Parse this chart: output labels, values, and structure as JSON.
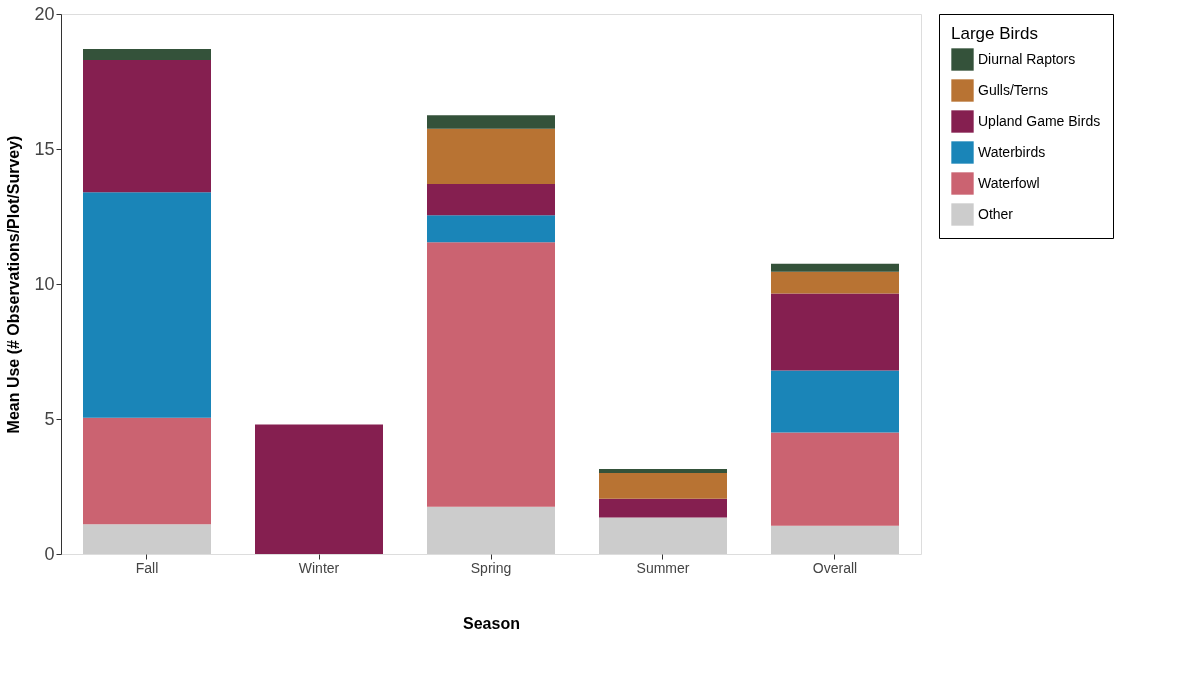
{
  "chart_data": {
    "type": "bar",
    "stacked": true,
    "xlabel": "Season",
    "ylabel": "Mean Use (# Observations/Plot/Survey)",
    "legend_title": "Large Birds",
    "legend": "right",
    "categories": [
      "Fall",
      "Winter",
      "Spring",
      "Summer",
      "Overall"
    ],
    "ylim": [
      0,
      20
    ],
    "yticks": [
      0,
      5,
      10,
      15,
      20
    ],
    "grid": false,
    "series": [
      {
        "name": "Other",
        "color": "#cccccc",
        "values": [
          1.1,
          null,
          1.75,
          1.35,
          1.05
        ]
      },
      {
        "name": "Waterfowl",
        "color": "#cb6371",
        "values": [
          3.95,
          null,
          9.8,
          null,
          3.45
        ]
      },
      {
        "name": "Waterbirds",
        "color": "#1a85b8",
        "values": [
          8.35,
          null,
          1.0,
          null,
          2.3
        ]
      },
      {
        "name": "Upland Game Birds",
        "color": "#851f50",
        "values": [
          4.9,
          4.8,
          1.15,
          0.7,
          2.85
        ]
      },
      {
        "name": "Gulls/Terns",
        "color": "#b87333",
        "values": [
          null,
          null,
          2.05,
          0.95,
          0.8
        ]
      },
      {
        "name": "Diurnal Raptors",
        "color": "#34523a",
        "values": [
          0.4,
          null,
          0.5,
          0.15,
          0.3
        ]
      }
    ]
  }
}
